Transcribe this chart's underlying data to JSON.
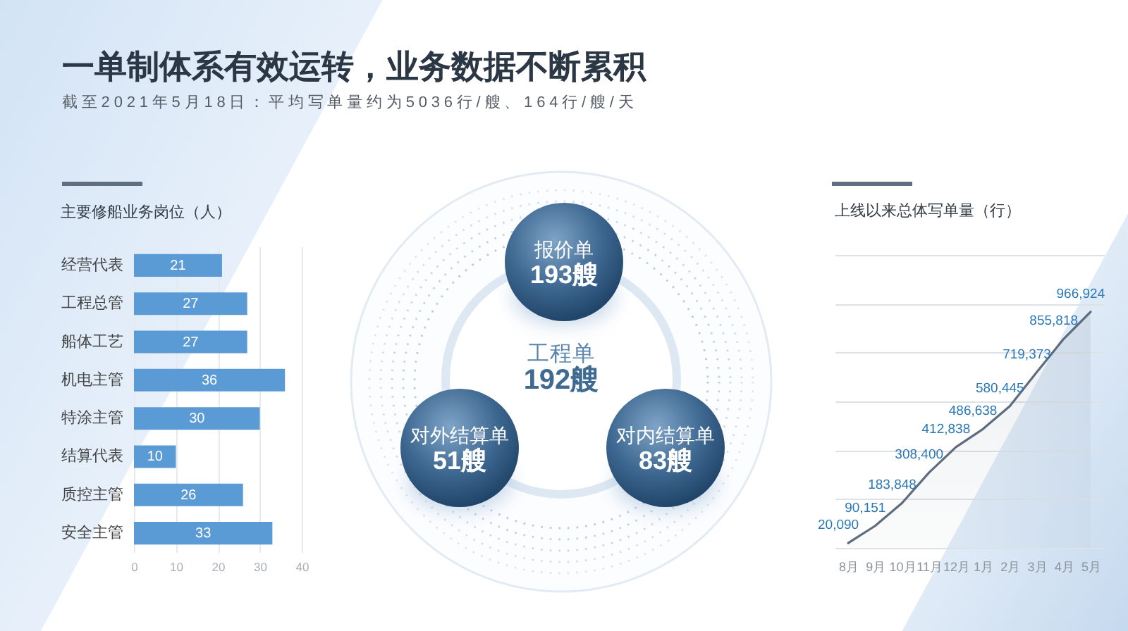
{
  "chart_data": [
    {
      "type": "other",
      "title": "一单制体系有效运转，业务数据不断累积",
      "subtitle": "截至2021年5月18日：平均写单量约为5036行/艘、164行/艘/天"
    },
    {
      "type": "bar",
      "orientation": "horizontal",
      "title": "主要修船业务岗位（人）",
      "categories": [
        "经营代表",
        "工程总管",
        "船体工艺",
        "机电主管",
        "特涂主管",
        "结算代表",
        "质控主管",
        "安全主管"
      ],
      "values": [
        21,
        27,
        27,
        36,
        30,
        10,
        26,
        33
      ],
      "color": "#5b9bd5",
      "xlim": [
        0,
        40
      ],
      "xticks": [
        0,
        10,
        20,
        30,
        40
      ],
      "grid": "x",
      "data_labels": true
    },
    {
      "type": "other",
      "annotations": [
        "报价单",
        "193艘",
        "工程单",
        "192艘",
        "对外结算单",
        "51艘",
        "对内结算单",
        "83艘"
      ]
    },
    {
      "type": "area",
      "title": "上线以来总体写单量（行）",
      "categories": [
        "8月",
        "9月",
        "10月",
        "11月",
        "12月",
        "1月",
        "2月",
        "3月",
        "4月",
        "5月"
      ],
      "values": [
        20090,
        90151,
        183848,
        308400,
        412838,
        486638,
        580445,
        719373,
        855818,
        966924
      ],
      "value_labels": [
        "20,090",
        "90,151",
        "183,848",
        "308,400",
        "412,838",
        "486,638",
        "580,445",
        "719,373",
        "855,818",
        "966,924"
      ],
      "color": "#5d6d7e",
      "ylim": [
        0,
        1200000
      ],
      "yticks": [
        {
          "value": 0,
          "label": null
        },
        {
          "value": 200000,
          "label": null
        },
        {
          "value": 400000,
          "label": null
        },
        {
          "value": 600000,
          "label": null
        },
        {
          "value": 800000,
          "label": null
        },
        {
          "value": 1000000,
          "label": null
        },
        {
          "value": 1200000,
          "label": null
        }
      ],
      "grid": "y",
      "tick_labels": "x"
    }
  ]
}
